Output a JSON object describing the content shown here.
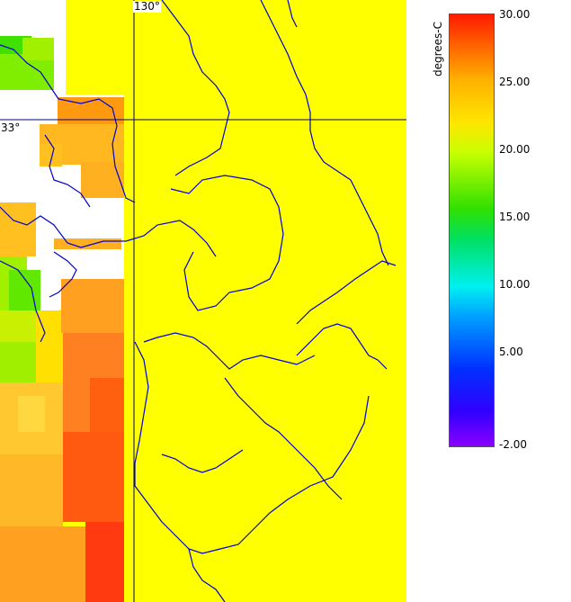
{
  "map": {
    "lon_label": "130°",
    "lat_label": "33°",
    "colors": {
      "land": "#ffff00",
      "coast": "#0000cc",
      "grid": "#000080",
      "nodata": "#ffffff"
    }
  },
  "colorbar": {
    "unit_label": "degrees-C",
    "ticks": [
      "30.00",
      "25.00",
      "20.00",
      "15.00",
      "10.00",
      "5.00",
      "-2.00"
    ],
    "min": -2,
    "max": 30
  }
}
